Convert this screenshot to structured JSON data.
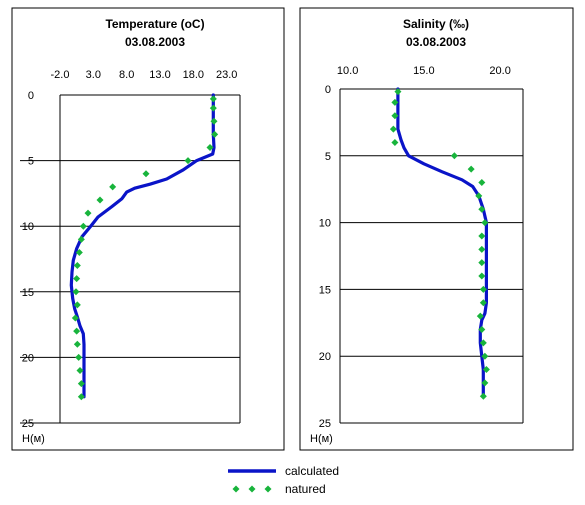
{
  "chart_data": [
    {
      "type": "line",
      "title": "Temperature  (oC)",
      "subtitle": "03.08.2003",
      "ylabel": "H(м)",
      "x_ticks": [
        "-2.0",
        "3.0",
        "8.0",
        "13.0",
        "18.0",
        "23.0"
      ],
      "y_ticks": [
        "0",
        "5",
        "10",
        "15",
        "20",
        "25"
      ],
      "xlim": [
        -2,
        25
      ],
      "ylim": [
        0,
        25
      ],
      "y_inverted": true,
      "grid": "horizontal",
      "series": [
        {
          "name": "calculated",
          "style": "line",
          "color": "#0a14c8",
          "points": [
            [
              21.0,
              0
            ],
            [
              21.0,
              1
            ],
            [
              21.0,
              2
            ],
            [
              21.0,
              3
            ],
            [
              21.1,
              4
            ],
            [
              20.9,
              4.5
            ],
            [
              18.5,
              5
            ],
            [
              16.5,
              5.7
            ],
            [
              14.0,
              6.4
            ],
            [
              11.5,
              6.8
            ],
            [
              9.2,
              7.1
            ],
            [
              8.0,
              7.4
            ],
            [
              7.3,
              7.9
            ],
            [
              5.8,
              8.5
            ],
            [
              3.7,
              9.3
            ],
            [
              2.6,
              10
            ],
            [
              1.3,
              10.8
            ],
            [
              0.5,
              11.7
            ],
            [
              0,
              12.6
            ],
            [
              -0.2,
              13.5
            ],
            [
              -0.3,
              14.5
            ],
            [
              -0.1,
              15.5
            ],
            [
              0.2,
              16.3
            ],
            [
              0.6,
              16.9
            ],
            [
              1.0,
              17.6
            ],
            [
              1.5,
              18.2
            ],
            [
              1.6,
              19
            ],
            [
              1.6,
              20
            ],
            [
              1.6,
              21
            ],
            [
              1.6,
              22
            ],
            [
              1.6,
              23
            ]
          ]
        },
        {
          "name": "natured",
          "style": "markers",
          "color": "#18b43c",
          "points": [
            [
              21.0,
              0.3
            ],
            [
              21.0,
              1
            ],
            [
              21.1,
              2
            ],
            [
              21.2,
              3
            ],
            [
              20.5,
              4
            ],
            [
              17.2,
              5
            ],
            [
              10.9,
              6
            ],
            [
              5.9,
              7
            ],
            [
              4.0,
              8
            ],
            [
              2.2,
              9
            ],
            [
              1.5,
              10
            ],
            [
              1.2,
              11
            ],
            [
              0.9,
              12
            ],
            [
              0.6,
              13
            ],
            [
              0.5,
              14
            ],
            [
              0.4,
              15
            ],
            [
              0.6,
              16
            ],
            [
              0.3,
              17
            ],
            [
              0.5,
              18
            ],
            [
              0.6,
              19
            ],
            [
              0.8,
              20
            ],
            [
              1.0,
              21
            ],
            [
              1.2,
              22
            ],
            [
              1.2,
              23
            ]
          ]
        }
      ]
    },
    {
      "type": "line",
      "title": "Salinity (‰)",
      "subtitle": "03.08.2003",
      "ylabel": "H(м)",
      "x_ticks": [
        "10.0",
        "15.0",
        "20.0"
      ],
      "y_ticks": [
        "0",
        "5",
        "10",
        "15",
        "20",
        "25"
      ],
      "xlim": [
        9.5,
        21.5
      ],
      "ylim": [
        0,
        25
      ],
      "y_inverted": true,
      "grid": "horizontal",
      "series": [
        {
          "name": "calculated",
          "style": "line",
          "color": "#0a14c8",
          "points": [
            [
              13.3,
              0
            ],
            [
              13.3,
              1
            ],
            [
              13.3,
              2
            ],
            [
              13.3,
              3
            ],
            [
              13.5,
              3.8
            ],
            [
              13.7,
              4.4
            ],
            [
              14.0,
              5
            ],
            [
              15.0,
              5.6
            ],
            [
              16.2,
              6.2
            ],
            [
              17.5,
              6.8
            ],
            [
              18.2,
              7.3
            ],
            [
              18.6,
              8
            ],
            [
              18.9,
              9
            ],
            [
              19.1,
              10
            ],
            [
              19.1,
              11
            ],
            [
              19.1,
              12
            ],
            [
              19.1,
              13
            ],
            [
              19.1,
              14
            ],
            [
              19.1,
              15
            ],
            [
              19.1,
              16
            ],
            [
              19.0,
              16.8
            ],
            [
              18.8,
              17.3
            ],
            [
              18.7,
              18
            ],
            [
              18.7,
              19
            ],
            [
              18.8,
              20
            ],
            [
              18.9,
              21
            ],
            [
              18.9,
              22
            ],
            [
              18.9,
              23
            ]
          ]
        },
        {
          "name": "natured",
          "style": "markers",
          "color": "#18b43c",
          "points": [
            [
              13.3,
              0.2
            ],
            [
              13.1,
              1
            ],
            [
              13.1,
              2
            ],
            [
              13.0,
              3
            ],
            [
              13.1,
              4
            ],
            [
              17.0,
              5
            ],
            [
              18.1,
              6
            ],
            [
              18.8,
              7
            ],
            [
              18.6,
              8
            ],
            [
              18.8,
              9
            ],
            [
              19.0,
              10
            ],
            [
              18.8,
              11
            ],
            [
              18.8,
              12
            ],
            [
              18.8,
              13
            ],
            [
              18.8,
              14
            ],
            [
              18.9,
              15
            ],
            [
              18.9,
              16
            ],
            [
              18.7,
              17
            ],
            [
              18.8,
              18
            ],
            [
              18.9,
              19
            ],
            [
              19.0,
              20
            ],
            [
              19.1,
              21
            ],
            [
              19.0,
              22
            ],
            [
              18.9,
              23
            ]
          ]
        }
      ]
    }
  ],
  "legend": {
    "items": [
      {
        "label": "calculated",
        "style": "line",
        "color": "#0a14c8"
      },
      {
        "label": "natured",
        "style": "markers",
        "color": "#18b43c"
      }
    ]
  }
}
